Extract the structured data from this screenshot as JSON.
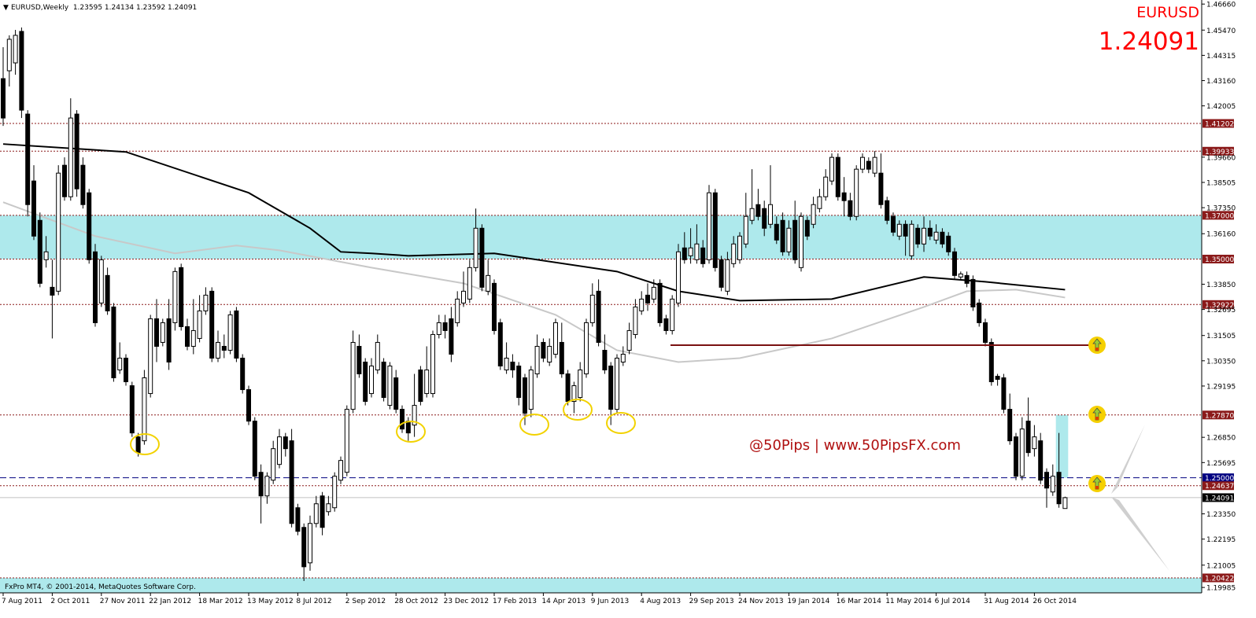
{
  "chart_data": {
    "type": "candlestick",
    "header": "EURUSD,Weekly  1.23595 1.24134 1.23592 1.24091",
    "symbol": "EURUSD",
    "price": "1.24091",
    "watermark": "@50Pips | www.50PipsFX.com",
    "footer": "FxPro MT4, © 2001-2014, MetaQuotes Software Corp.",
    "bull_color": "#ffffff",
    "bear_color": "#000000",
    "wick_color": "#000000",
    "ylim": [
      1.19738,
      1.46846
    ],
    "yticks": [
      {
        "value": 1.4666,
        "label": "1.46660"
      },
      {
        "value": 1.4547,
        "label": "1.45470"
      },
      1.44315,
      {
        "value": 1.4316,
        "label": "1.43160"
      },
      1.42005,
      {
        "value": 1.3966,
        "label": "1.39660"
      },
      1.38505,
      {
        "value": 1.3735,
        "label": "1.37350"
      },
      {
        "value": 1.3616,
        "label": "1.36160"
      },
      {
        "value": 1.3385,
        "label": "1.33850"
      },
      1.32695,
      1.31505,
      {
        "value": 1.3035,
        "label": "1.30350"
      },
      1.29195,
      {
        "value": 1.2685,
        "label": "1.26850"
      },
      1.25695,
      {
        "value": 1.2335,
        "label": "1.23350"
      },
      1.22195,
      1.21005,
      1.19985
    ],
    "levels": [
      1.41202,
      1.39933,
      {
        "value": 1.37,
        "label": "1.37000"
      },
      {
        "value": 1.35,
        "label": "1.35000"
      },
      1.32922,
      {
        "value": 1.2787,
        "label": "1.27870"
      },
      {
        "value": 1.25,
        "label": "1.25000"
      },
      1.24637,
      1.24091,
      1.20422
    ],
    "level_colors": [
      "#8b1a1a",
      "#8b1a1a",
      "#8b1a1a",
      "#8b1a1a",
      "#8b1a1a",
      "#8b1a1a",
      "#000080",
      "#8b1a1a",
      "#000000",
      "#8b1a1a"
    ],
    "level_styles": [
      "dot",
      "dot",
      "dot",
      "dot",
      "dot",
      "dot",
      "dash",
      "dot",
      "solid",
      "dot"
    ],
    "zone_color": "#aee9ec",
    "categories": [
      "7 Aug 2011",
      null,
      null,
      null,
      null,
      null,
      null,
      null,
      "2 Oct 2011",
      null,
      null,
      null,
      null,
      null,
      null,
      null,
      "27 Nov 2011",
      null,
      null,
      null,
      null,
      null,
      null,
      null,
      "22 Jan 2012",
      null,
      null,
      null,
      null,
      null,
      null,
      null,
      "18 Mar 2012",
      null,
      null,
      null,
      null,
      null,
      null,
      null,
      "13 May 2012",
      null,
      null,
      null,
      null,
      null,
      null,
      null,
      "8 Jul 2012",
      null,
      null,
      null,
      null,
      null,
      null,
      null,
      "2 Sep 2012",
      null,
      null,
      null,
      null,
      null,
      null,
      null,
      "28 Oct 2012",
      null,
      null,
      null,
      null,
      null,
      null,
      null,
      "23 Dec 2012",
      null,
      null,
      null,
      null,
      null,
      null,
      null,
      "17 Feb 2013",
      null,
      null,
      null,
      null,
      null,
      null,
      null,
      "14 Apr 2013",
      null,
      null,
      null,
      null,
      null,
      null,
      null,
      "9 Jun 2013",
      null,
      null,
      null,
      null,
      null,
      null,
      null,
      "4 Aug 2013",
      null,
      null,
      null,
      null,
      null,
      null,
      null,
      "29 Sep 2013",
      null,
      null,
      null,
      null,
      null,
      null,
      null,
      "24 Nov 2013",
      null,
      null,
      null,
      null,
      null,
      null,
      null,
      "19 Jan 2014",
      null,
      null,
      null,
      null,
      null,
      null,
      null,
      "16 Mar 2014",
      null,
      null,
      null,
      null,
      null,
      null,
      null,
      "11 May 2014",
      null,
      null,
      null,
      null,
      null,
      null,
      null,
      "6 Jul 2014",
      null,
      null,
      null,
      null,
      null,
      null,
      null,
      "31 Aug 2014",
      null,
      null,
      null,
      null,
      null,
      null,
      null,
      "26 Oct 2014",
      null,
      null,
      null,
      null,
      null
    ],
    "candles": [
      [
        1.4325,
        1.4469,
        1.4109,
        1.4145
      ],
      [
        1.4361,
        1.4523,
        1.4289,
        1.4505
      ],
      [
        1.4397,
        1.4548,
        1.4343,
        1.4523
      ],
      [
        1.4541,
        1.4559,
        1.4145,
        1.4181
      ],
      [
        1.4163,
        1.4181,
        1.3695,
        1.3749
      ],
      [
        1.3857,
        1.3929,
        1.3587,
        1.3605
      ],
      [
        1.3677,
        1.3713,
        1.3371,
        1.3389
      ],
      [
        1.3497,
        1.3605,
        1.3461,
        1.3533
      ],
      [
        1.3371,
        1.3497,
        1.3137,
        1.3335
      ],
      [
        1.3353,
        1.3929,
        1.3335,
        1.3893
      ],
      [
        1.3929,
        1.3965,
        1.3767,
        1.3785
      ],
      [
        1.3785,
        1.4235,
        1.3767,
        1.4145
      ],
      [
        1.4163,
        1.4181,
        1.3785,
        1.3821
      ],
      [
        1.3929,
        1.3965,
        1.3731,
        1.3749
      ],
      [
        1.3803,
        1.3821,
        1.3479,
        1.3497
      ],
      [
        1.3533,
        1.3569,
        1.3191,
        1.3209
      ],
      [
        1.3299,
        1.3515,
        1.3281,
        1.3497
      ],
      [
        1.3425,
        1.3461,
        1.3245,
        1.3263
      ],
      [
        1.3281,
        1.3299,
        1.2939,
        1.2957
      ],
      [
        1.2993,
        1.3119,
        1.2975,
        1.3047
      ],
      [
        1.3047,
        1.3065,
        1.2921,
        1.2939
      ],
      [
        1.2921,
        1.2939,
        1.2687,
        1.2705
      ],
      [
        1.2687,
        1.2705,
        1.2597,
        1.2615
      ],
      [
        1.2669,
        1.2993,
        1.2651,
        1.2957
      ],
      [
        1.2885,
        1.3245,
        1.2867,
        1.3227
      ],
      [
        1.3227,
        1.3317,
        1.3029,
        1.3101
      ],
      [
        1.3119,
        1.3227,
        1.3101,
        1.3209
      ],
      [
        1.3227,
        1.3317,
        1.2993,
        1.3029
      ],
      [
        1.3209,
        1.3461,
        1.3173,
        1.3443
      ],
      [
        1.3461,
        1.3479,
        1.3173,
        1.3191
      ],
      [
        1.3191,
        1.3227,
        1.3083,
        1.3101
      ],
      [
        1.3101,
        1.3317,
        1.3065,
        1.3173
      ],
      [
        1.3137,
        1.3335,
        1.3119,
        1.3263
      ],
      [
        1.3263,
        1.3371,
        1.3245,
        1.3335
      ],
      [
        1.3353,
        1.3371,
        1.3029,
        1.3047
      ],
      [
        1.3047,
        1.3173,
        1.3029,
        1.3119
      ],
      [
        1.3101,
        1.3155,
        1.3047,
        1.3083
      ],
      [
        1.3083,
        1.3263,
        1.3065,
        1.3245
      ],
      [
        1.3263,
        1.3281,
        1.3029,
        1.3047
      ],
      [
        1.3047,
        1.3065,
        1.2885,
        1.2903
      ],
      [
        1.2903,
        1.2921,
        1.2741,
        1.2759
      ],
      [
        1.2759,
        1.2777,
        1.2489,
        1.2507
      ],
      [
        1.2525,
        1.2561,
        1.2291,
        1.2417
      ],
      [
        1.2417,
        1.2525,
        1.2381,
        1.2507
      ],
      [
        1.2489,
        1.2669,
        1.2471,
        1.2633
      ],
      [
        1.2561,
        1.2723,
        1.2543,
        1.2687
      ],
      [
        1.2687,
        1.2705,
        1.2597,
        1.2633
      ],
      [
        1.2669,
        1.2723,
        1.2273,
        1.2291
      ],
      [
        1.2363,
        1.2381,
        1.2237,
        1.2255
      ],
      [
        1.2273,
        1.2291,
        1.2028,
        1.2093
      ],
      [
        1.2111,
        1.2327,
        1.2075,
        1.2291
      ],
      [
        1.2291,
        1.2417,
        1.2273,
        1.2381
      ],
      [
        1.2417,
        1.2435,
        1.2237,
        1.2273
      ],
      [
        1.2345,
        1.2417,
        1.2327,
        1.2381
      ],
      [
        1.2363,
        1.2525,
        1.2345,
        1.2507
      ],
      [
        1.2489,
        1.2597,
        1.2471,
        1.2579
      ],
      [
        1.2525,
        1.2831,
        1.2507,
        1.2813
      ],
      [
        1.2813,
        1.3173,
        1.2795,
        1.3119
      ],
      [
        1.3101,
        1.3155,
        1.2957,
        1.2975
      ],
      [
        1.3029,
        1.3047,
        1.2831,
        1.2849
      ],
      [
        1.2885,
        1.3047,
        1.2867,
        1.3011
      ],
      [
        1.2993,
        1.3155,
        1.2975,
        1.3119
      ],
      [
        1.3029,
        1.3047,
        1.2849,
        1.2867
      ],
      [
        1.2831,
        1.3029,
        1.2813,
        1.3011
      ],
      [
        1.2957,
        1.2993,
        1.2795,
        1.2813
      ],
      [
        1.2813,
        1.2831,
        1.2705,
        1.2723
      ],
      [
        1.2759,
        1.2777,
        1.2669,
        1.2705
      ],
      [
        1.2741,
        1.2975,
        1.2687,
        1.2831
      ],
      [
        1.2993,
        1.3011,
        1.2831,
        1.2849
      ],
      [
        1.2885,
        1.3101,
        1.2867,
        1.2993
      ],
      [
        1.2885,
        1.3173,
        1.2867,
        1.3155
      ],
      [
        1.3155,
        1.3245,
        1.3137,
        1.3209
      ],
      [
        1.3209,
        1.3245,
        1.3137,
        1.3173
      ],
      [
        1.3227,
        1.3281,
        1.3029,
        1.3065
      ],
      [
        1.3209,
        1.3353,
        1.3191,
        1.3317
      ],
      [
        1.3299,
        1.3443,
        1.3281,
        1.3353
      ],
      [
        1.3317,
        1.3497,
        1.3299,
        1.3461
      ],
      [
        1.3461,
        1.3731,
        1.3443,
        1.3641
      ],
      [
        1.3641,
        1.3659,
        1.3353,
        1.3371
      ],
      [
        1.3353,
        1.3497,
        1.3335,
        1.3425
      ],
      [
        1.3389,
        1.3407,
        1.3155,
        1.3173
      ],
      [
        1.3209,
        1.3227,
        1.2993,
        1.3011
      ],
      [
        1.2993,
        1.3119,
        1.2975,
        1.3047
      ],
      [
        1.3029,
        1.3065,
        1.2957,
        1.2993
      ],
      [
        1.3011,
        1.3029,
        1.2831,
        1.2867
      ],
      [
        1.2957,
        1.2975,
        1.2741,
        1.2795
      ],
      [
        1.2813,
        1.3011,
        1.2777,
        1.2993
      ],
      [
        1.2975,
        1.3155,
        1.2957,
        1.3101
      ],
      [
        1.3119,
        1.3137,
        1.3029,
        1.3047
      ],
      [
        1.3029,
        1.3137,
        1.3011,
        1.3101
      ],
      [
        1.3065,
        1.3227,
        1.3047,
        1.3209
      ],
      [
        1.3119,
        1.3209,
        1.2957,
        1.2975
      ],
      [
        1.2975,
        1.2993,
        1.2831,
        1.2849
      ],
      [
        1.2849,
        1.2939,
        1.2795,
        1.2921
      ],
      [
        1.2867,
        1.3029,
        1.2849,
        1.2993
      ],
      [
        1.2975,
        1.3227,
        1.2957,
        1.3209
      ],
      [
        1.3209,
        1.3389,
        1.3191,
        1.3335
      ],
      [
        1.3353,
        1.3407,
        1.3101,
        1.3119
      ],
      [
        1.3083,
        1.3155,
        1.2975,
        1.2993
      ],
      [
        1.3011,
        1.3029,
        1.2741,
        1.2813
      ],
      [
        1.2813,
        1.3065,
        1.2795,
        1.3047
      ],
      [
        1.3029,
        1.3101,
        1.3011,
        1.3065
      ],
      [
        1.3083,
        1.3209,
        1.3065,
        1.3173
      ],
      [
        1.3155,
        1.3317,
        1.3137,
        1.3281
      ],
      [
        1.3263,
        1.3353,
        1.3245,
        1.3317
      ],
      [
        1.3335,
        1.3389,
        1.3263,
        1.3299
      ],
      [
        1.3317,
        1.3407,
        1.3299,
        1.3371
      ],
      [
        1.3389,
        1.3407,
        1.3191,
        1.3209
      ],
      [
        1.3227,
        1.3245,
        1.3155,
        1.3173
      ],
      [
        1.3173,
        1.3335,
        1.3155,
        1.3317
      ],
      [
        1.3299,
        1.3569,
        1.3281,
        1.3533
      ],
      [
        1.3551,
        1.3623,
        1.3479,
        1.3497
      ],
      [
        1.3515,
        1.3641,
        1.3479,
        1.3551
      ],
      [
        1.3497,
        1.3659,
        1.3479,
        1.3569
      ],
      [
        1.3551,
        1.3587,
        1.3461,
        1.3479
      ],
      [
        1.3497,
        1.3839,
        1.3479,
        1.3803
      ],
      [
        1.3803,
        1.3821,
        1.3443,
        1.3461
      ],
      [
        1.3497,
        1.3515,
        1.3353,
        1.3371
      ],
      [
        1.3353,
        1.3533,
        1.3335,
        1.3497
      ],
      [
        1.3479,
        1.3605,
        1.3461,
        1.3569
      ],
      [
        1.3497,
        1.3623,
        1.3479,
        1.3605
      ],
      [
        1.3569,
        1.3803,
        1.3551,
        1.3695
      ],
      [
        1.3677,
        1.3911,
        1.3659,
        1.3731
      ],
      [
        1.3749,
        1.3821,
        1.3677,
        1.3695
      ],
      [
        1.3731,
        1.3767,
        1.3605,
        1.3641
      ],
      [
        1.3659,
        1.3929,
        1.3641,
        1.3749
      ],
      [
        1.3659,
        1.3695,
        1.3569,
        1.3587
      ],
      [
        1.3677,
        1.3713,
        1.3515,
        1.3533
      ],
      [
        1.3533,
        1.3677,
        1.3515,
        1.3641
      ],
      [
        1.3677,
        1.3767,
        1.3479,
        1.3497
      ],
      [
        1.3461,
        1.3713,
        1.3443,
        1.3695
      ],
      [
        1.3677,
        1.3695,
        1.3587,
        1.3605
      ],
      [
        1.3659,
        1.3785,
        1.3641,
        1.3749
      ],
      [
        1.3731,
        1.3821,
        1.3713,
        1.3785
      ],
      [
        1.3785,
        1.3911,
        1.3767,
        1.3875
      ],
      [
        1.3857,
        1.3983,
        1.3839,
        1.3965
      ],
      [
        1.3965,
        1.3983,
        1.3767,
        1.3785
      ],
      [
        1.3803,
        1.3875,
        1.3695,
        1.3767
      ],
      [
        1.3767,
        1.3803,
        1.3677,
        1.3695
      ],
      [
        1.3695,
        1.3929,
        1.3677,
        1.3911
      ],
      [
        1.3911,
        1.3983,
        1.3893,
        1.3965
      ],
      [
        1.3947,
        1.3965,
        1.3893,
        1.3911
      ],
      [
        1.3893,
        1.3994,
        1.3875,
        1.3965
      ],
      [
        1.3893,
        1.3983,
        1.3731,
        1.3749
      ],
      [
        1.3767,
        1.3785,
        1.3659,
        1.3677
      ],
      [
        1.3695,
        1.3713,
        1.3605,
        1.3623
      ],
      [
        1.3605,
        1.3677,
        1.3587,
        1.3659
      ],
      [
        1.3659,
        1.3677,
        1.3515,
        1.3605
      ],
      [
        1.3515,
        1.3677,
        1.3497,
        1.3659
      ],
      [
        1.3641,
        1.3659,
        1.3551,
        1.3569
      ],
      [
        1.3569,
        1.3695,
        1.3533,
        1.3641
      ],
      [
        1.3641,
        1.3677,
        1.3587,
        1.3605
      ],
      [
        1.3587,
        1.3659,
        1.3569,
        1.3623
      ],
      [
        1.3623,
        1.3641,
        1.3551,
        1.3569
      ],
      [
        1.3605,
        1.3623,
        1.3515,
        1.3533
      ],
      [
        1.3533,
        1.3551,
        1.3407,
        1.3425
      ],
      [
        1.3418,
        1.3443,
        1.3407,
        1.3432
      ],
      [
        1.3425,
        1.3443,
        1.3371,
        1.3389
      ],
      [
        1.3407,
        1.3425,
        1.3263,
        1.3281
      ],
      [
        1.3299,
        1.3317,
        1.3191,
        1.3209
      ],
      [
        1.3209,
        1.3227,
        1.3101,
        1.3119
      ],
      [
        1.3119,
        1.3137,
        1.2921,
        1.2939
      ],
      [
        1.2964,
        1.2975,
        1.2921,
        1.295
      ],
      [
        1.2957,
        1.2975,
        1.2795,
        1.2813
      ],
      [
        1.2813,
        1.2885,
        1.2651,
        1.2669
      ],
      [
        1.2687,
        1.2705,
        1.2489,
        1.2507
      ],
      [
        1.2507,
        1.2777,
        1.2489,
        1.2723
      ],
      [
        1.2759,
        1.2867,
        1.2597,
        1.2615
      ],
      [
        1.2633,
        1.2741,
        1.2597,
        1.2687
      ],
      [
        1.2669,
        1.2705,
        1.2471,
        1.2489
      ],
      [
        1.2525,
        1.2543,
        1.2363,
        1.2453
      ],
      [
        1.2435,
        1.2561,
        1.2417,
        1.2507
      ],
      [
        1.2525,
        1.2705,
        1.2363,
        1.2381
      ],
      [
        1.23595,
        1.24134,
        1.23592,
        1.24091
      ]
    ],
    "series": [
      {
        "color": "#000000",
        "x": [
          0,
          20,
          40,
          50,
          55,
          60,
          66,
          80,
          100,
          110,
          120,
          135,
          150,
          160,
          173
        ],
        "values": [
          1.4026,
          1.399,
          1.3803,
          1.3641,
          1.3533,
          1.3526,
          1.3515,
          1.3526,
          1.3443,
          1.3353,
          1.331,
          1.3317,
          1.3418,
          1.3396,
          1.336
        ]
      },
      {
        "color": "#c8c8c8",
        "x": [
          0,
          15,
          28,
          38,
          45,
          60,
          75,
          90,
          100,
          110,
          120,
          135,
          150,
          157,
          165,
          173
        ],
        "values": [
          1.376,
          1.3605,
          1.3526,
          1.3562,
          1.354,
          1.3461,
          1.3389,
          1.3245,
          1.3083,
          1.3029,
          1.3047,
          1.3137,
          1.3281,
          1.3353,
          1.336,
          1.3324
        ]
      }
    ]
  }
}
